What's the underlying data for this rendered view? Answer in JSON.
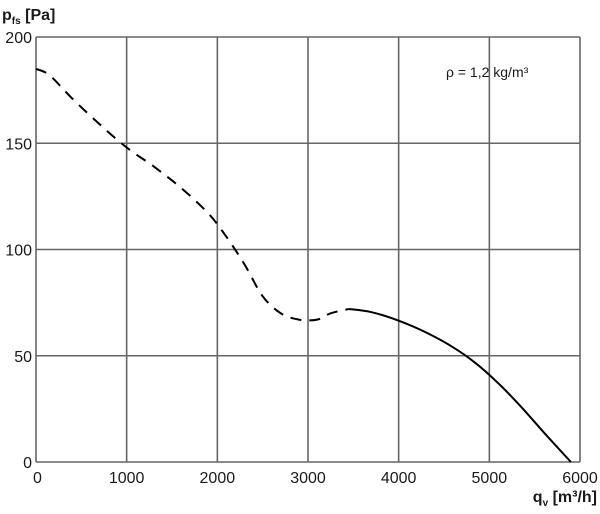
{
  "chart_data": {
    "type": "line",
    "title": "",
    "ylabel_main": "p",
    "ylabel_sub": "fs",
    "ylabel_unit": " [Pa]",
    "xlabel_main": "q",
    "xlabel_sub": "v",
    "xlabel_unit": " [m³/h]",
    "xlim": [
      0,
      6000
    ],
    "ylim": [
      0,
      200
    ],
    "x_ticks": [
      0,
      1000,
      2000,
      3000,
      4000,
      5000,
      6000
    ],
    "y_ticks": [
      0,
      50,
      100,
      150,
      200
    ],
    "x_tick_labels": [
      "0",
      "1000",
      "2000",
      "3000",
      "4000",
      "5000",
      "6000"
    ],
    "y_tick_labels": [
      "0",
      "50",
      "100",
      "150",
      "200"
    ],
    "grid": true,
    "annotation": "ρ = 1,2 kg/m³",
    "series": [
      {
        "style": "dashed",
        "color": "#000000",
        "x": [
          0,
          150,
          400,
          700,
          1000,
          1300,
          1600,
          1900,
          2100,
          2300,
          2500,
          2700,
          2900,
          3100,
          3250,
          3450
        ],
        "y": [
          185,
          182,
          171,
          159,
          148,
          139,
          129,
          117,
          106,
          93,
          78,
          70,
          67,
          67,
          70,
          72
        ]
      },
      {
        "style": "solid",
        "color": "#000000",
        "x": [
          3450,
          3700,
          4000,
          4300,
          4600,
          4850,
          5100,
          5350,
          5600,
          5900
        ],
        "y": [
          72,
          70.5,
          66.5,
          61,
          54,
          46.5,
          37,
          26,
          14,
          0
        ]
      }
    ]
  }
}
